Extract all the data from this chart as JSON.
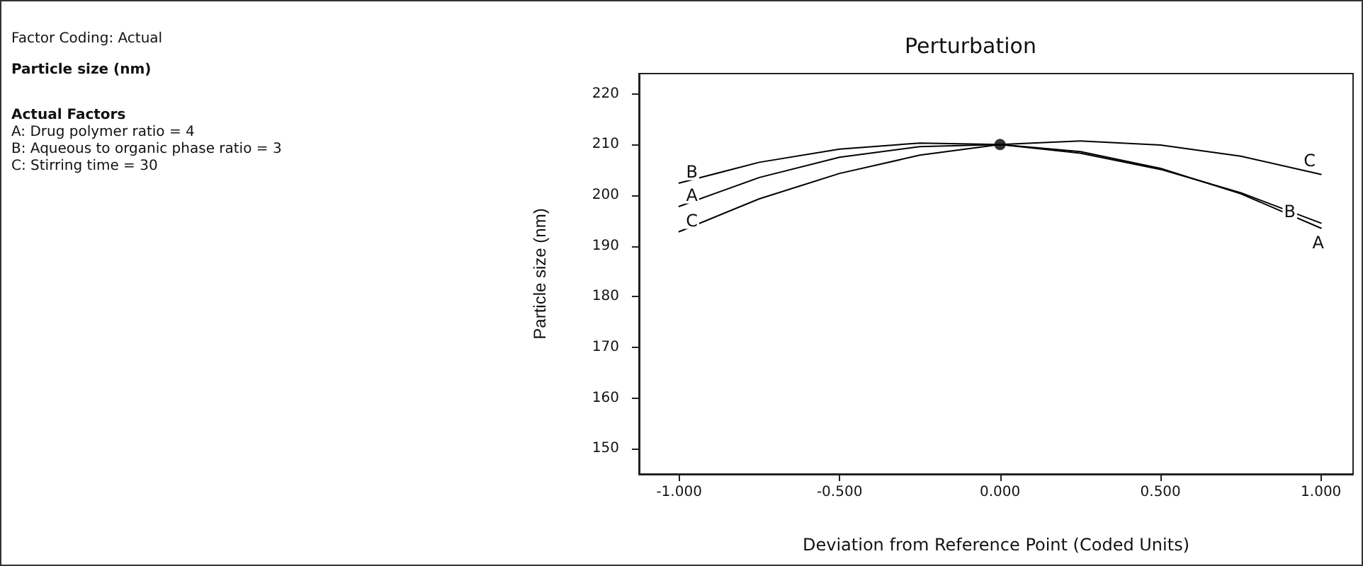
{
  "chart_data": {
    "type": "line",
    "title": "Perturbation",
    "xlabel": "Deviation from Reference Point (Coded Units)",
    "ylabel": "Particle size (nm)",
    "annotations": [
      "Factor Coding: Actual",
      "Particle size (nm)",
      "Actual Factors",
      "A: Drug polymer ratio = 4",
      "B: Aqueous to organic phase ratio = 3",
      "C: Stirring time = 30"
    ],
    "x": [
      -1,
      -0.75,
      -0.5,
      -0.25,
      0,
      0.25,
      0.5,
      0.75,
      1
    ],
    "series": [
      {
        "name": "A",
        "color": "#000000",
        "values": [
          197.8,
          203.5,
          207.5,
          209.6,
          210,
          208.6,
          205.3,
          200.3,
          193.5
        ]
      },
      {
        "name": "B",
        "color": "#000000",
        "values": [
          202.4,
          206.5,
          209.1,
          210.3,
          210,
          208.3,
          205.1,
          200.5,
          194.5
        ]
      },
      {
        "name": "C",
        "color": "#000000",
        "values": [
          192.8,
          199.3,
          204.3,
          207.9,
          210,
          210.7,
          209.9,
          207.7,
          204.1
        ]
      },
      {
        "type": "scatter",
        "color": "#000000",
        "x": [
          0
        ],
        "values": [
          210
        ]
      }
    ],
    "xlim": [
      -1.125,
      1.1
    ],
    "ylim": [
      145,
      224
    ],
    "xticks": [
      {
        "value": -1,
        "label": "-1.000"
      },
      {
        "value": -0.5,
        "label": "-0.500"
      },
      {
        "value": 0,
        "label": "0.000"
      },
      {
        "value": 0.5,
        "label": "0.500"
      },
      {
        "value": 1,
        "label": "1.000"
      }
    ],
    "yticks": [
      150,
      160,
      170,
      180,
      190,
      200,
      210,
      220
    ],
    "grid": false,
    "legend": false,
    "line_style": "solid"
  }
}
